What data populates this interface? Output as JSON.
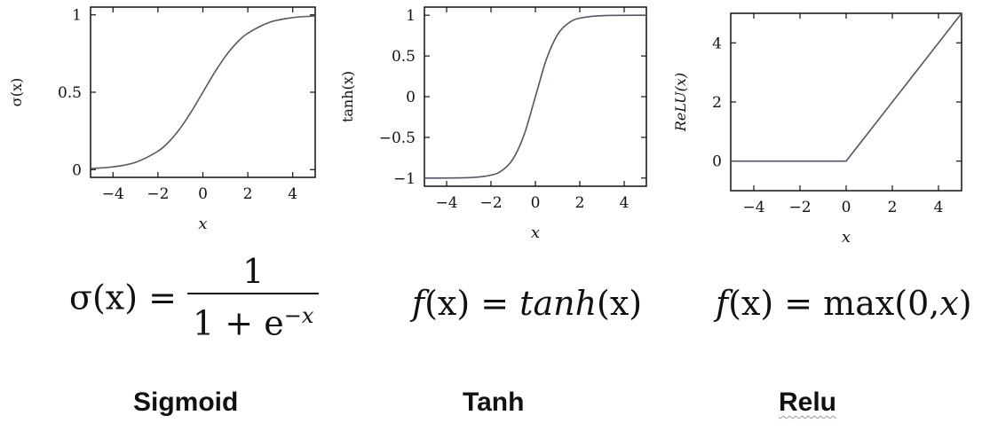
{
  "chart_data": [
    {
      "type": "line",
      "xlabel": "x",
      "ylabel": "σ(x)",
      "xlim": [
        -5,
        5
      ],
      "ylim": [
        -0.05,
        1.05
      ],
      "xticks": [
        -4,
        -2,
        0,
        2,
        4
      ],
      "xtick_labels": [
        "−4",
        "−2",
        "0",
        "2",
        "4"
      ],
      "yticks": [
        0,
        0.5,
        1
      ],
      "ytick_labels": [
        "0",
        "0.5",
        "1"
      ],
      "series": [
        {
          "x": [
            -5,
            -4,
            -3,
            -2,
            -1.5,
            -1,
            -0.5,
            0,
            0.5,
            1,
            1.5,
            2,
            3,
            4,
            5
          ],
          "y": [
            0.007,
            0.018,
            0.047,
            0.119,
            0.182,
            0.269,
            0.378,
            0.5,
            0.622,
            0.731,
            0.818,
            0.881,
            0.953,
            0.982,
            0.993
          ]
        }
      ],
      "grid": false
    },
    {
      "type": "line",
      "xlabel": "x",
      "ylabel": "tanh(x)",
      "xlim": [
        -5,
        5
      ],
      "ylim": [
        -1.1,
        1.1
      ],
      "xticks": [
        -4,
        -2,
        0,
        2,
        4
      ],
      "xtick_labels": [
        "−4",
        "−2",
        "0",
        "2",
        "4"
      ],
      "yticks": [
        -1,
        -0.5,
        0,
        0.5,
        1
      ],
      "ytick_labels": [
        "−1",
        "−0.5",
        "0",
        "0.5",
        "1"
      ],
      "series": [
        {
          "x": [
            -5,
            -3,
            -2,
            -1.5,
            -1,
            -0.5,
            0,
            0.5,
            1,
            1.5,
            2,
            3,
            5
          ],
          "y": [
            -1.0,
            -0.995,
            -0.964,
            -0.905,
            -0.762,
            -0.462,
            0,
            0.462,
            0.762,
            0.905,
            0.964,
            0.995,
            1.0
          ]
        }
      ],
      "grid": false
    },
    {
      "type": "line",
      "xlabel": "x",
      "ylabel": "ReLU(x)",
      "xlim": [
        -5,
        5
      ],
      "ylim": [
        -1,
        5
      ],
      "xticks": [
        -4,
        -2,
        0,
        2,
        4
      ],
      "xtick_labels": [
        "−4",
        "−2",
        "0",
        "2",
        "4"
      ],
      "yticks": [
        0,
        2,
        4
      ],
      "ytick_labels": [
        "0",
        "2",
        "4"
      ],
      "series": [
        {
          "x": [
            -5,
            0,
            5
          ],
          "y": [
            0,
            0,
            5
          ]
        }
      ],
      "grid": false
    }
  ],
  "formulas": {
    "sigmoid": {
      "lhs": "σ(x) =",
      "numerator": "1",
      "denominator_base": "1 + e",
      "denominator_exp": "−x"
    },
    "tanh": {
      "text_f": "f",
      "text_rest": "(x) = ",
      "text_fn": "tanh",
      "text_arg": "(x)"
    },
    "relu": {
      "text_f": "f",
      "text_rest": "(x) = max(0,",
      "text_x": "x",
      "text_close": ")"
    }
  },
  "names": {
    "sigmoid": "Sigmoid",
    "tanh": "Tanh",
    "relu": "Relu"
  },
  "colors": {
    "curve": "#555566",
    "axis": "#111111"
  }
}
